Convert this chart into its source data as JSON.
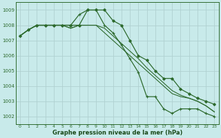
{
  "bg_color": "#c8eaea",
  "grid_color": "#b0d0d0",
  "line_color": "#2d6a2d",
  "marker_color": "#2d6a2d",
  "xlabel": "Graphe pression niveau de la mer (hPa)",
  "xlabel_color": "#1a4a1a",
  "ylabel_color": "#2d6a2d",
  "ylim": [
    1001.5,
    1009.5
  ],
  "xlim": [
    -0.5,
    23.5
  ],
  "yticks": [
    1002,
    1003,
    1004,
    1005,
    1006,
    1007,
    1008,
    1009
  ],
  "xticks": [
    0,
    1,
    2,
    3,
    4,
    5,
    6,
    7,
    8,
    9,
    10,
    11,
    12,
    13,
    14,
    15,
    16,
    17,
    18,
    19,
    20,
    21,
    22,
    23
  ],
  "series_marked": [
    1007.3,
    1007.7,
    1008.0,
    1008.0,
    1008.0,
    1008.0,
    1008.0,
    1008.0,
    1009.0,
    1009.0,
    1009.0,
    1008.3,
    1008.0,
    1007.0,
    1006.0,
    1005.7,
    1005.0,
    1004.5,
    1004.5,
    1003.8,
    1003.5,
    1003.2,
    1003.0,
    1002.8
  ],
  "series_spike": [
    1007.3,
    1007.7,
    1008.0,
    1008.0,
    1008.0,
    1008.0,
    1008.0,
    1008.7,
    1009.0,
    1009.0,
    1008.0,
    1007.5,
    1006.7,
    1005.8,
    1004.9,
    1003.3,
    1003.3,
    1002.5,
    1002.2,
    1002.5,
    1002.5,
    1002.5,
    1002.2,
    1002.0
  ],
  "series_smooth1": [
    1007.3,
    1007.7,
    1008.0,
    1008.0,
    1008.0,
    1008.0,
    1007.8,
    1008.0,
    1008.0,
    1008.0,
    1007.5,
    1007.0,
    1006.5,
    1006.0,
    1005.5,
    1005.0,
    1004.5,
    1004.0,
    1003.5,
    1003.3,
    1003.2,
    1003.0,
    1002.7,
    1002.3
  ],
  "series_smooth2": [
    1007.3,
    1007.7,
    1008.0,
    1008.0,
    1008.0,
    1008.0,
    1007.8,
    1008.0,
    1008.0,
    1008.0,
    1007.8,
    1007.3,
    1006.8,
    1006.3,
    1005.8,
    1005.2,
    1004.7,
    1004.2,
    1003.7,
    1003.4,
    1003.2,
    1003.0,
    1002.7,
    1002.3
  ]
}
